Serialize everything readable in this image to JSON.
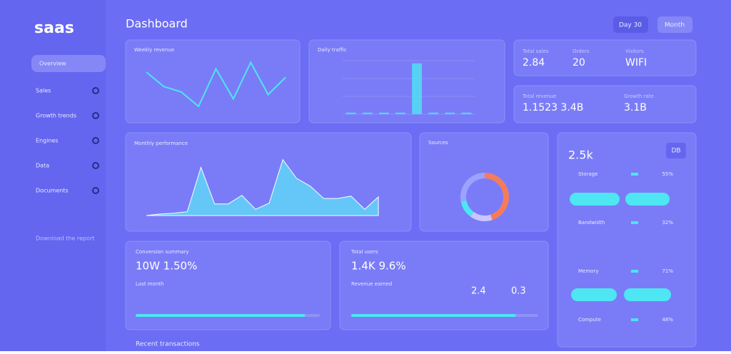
{
  "sidebar": {
    "logo": "saas",
    "items": [
      "Overview",
      "Sales",
      "Growth trends",
      "Engines",
      "Data",
      "Documents"
    ],
    "footer": "Download the report"
  },
  "header": {
    "title": "Dashboard",
    "buttons": [
      "Day 30",
      "Month"
    ]
  },
  "stats": [
    {
      "label": "Total sales",
      "value": "2.84"
    },
    {
      "label": "Orders",
      "value": "20"
    },
    {
      "label": "Visitors",
      "value": "WIFI"
    },
    {
      "label": "Total revenue",
      "value": "1.1523 3.4B"
    },
    {
      "label": "Growth rate",
      "value": "3.1B"
    }
  ],
  "panel": {
    "title": "2.5k",
    "badge": "DB",
    "rows": [
      {
        "label": "Storage",
        "value": "55%"
      },
      {
        "label": "Bandwidth",
        "value": "32%"
      },
      {
        "label": "Memory",
        "value": "71%"
      },
      {
        "label": "Compute",
        "value": "48%"
      }
    ]
  },
  "cards": [
    {
      "label": "Conversion summary",
      "value": "10W 1.50%",
      "sub": "Last month",
      "progress": 92
    },
    {
      "label": "Total users",
      "value": "1.4K 9.6%",
      "sub": "Revenue earned",
      "stats": [
        "2.4",
        "0.3"
      ],
      "progress": 88
    }
  ],
  "footer": "Recent transactions",
  "chart_data": [
    {
      "type": "line",
      "title": "Weekly revenue",
      "color": "#4de6f2",
      "values": [
        72,
        45,
        35,
        8,
        78,
        22,
        90,
        30,
        62
      ],
      "ylim": [
        0,
        100
      ]
    },
    {
      "type": "bar",
      "title": "Daily traffic",
      "color": "#4de6f2",
      "values": [
        3,
        3,
        3,
        3,
        95,
        3,
        3,
        3
      ],
      "ylim": [
        0,
        100
      ]
    },
    {
      "type": "area",
      "title": "Monthly performance",
      "color": "#5ee0f8",
      "values": [
        0,
        2,
        3,
        5,
        62,
        15,
        15,
        26,
        8,
        16,
        72,
        48,
        38,
        22,
        22,
        25,
        8,
        24
      ],
      "ylim": [
        0,
        80
      ]
    },
    {
      "type": "pie",
      "title": "Sources",
      "values": [
        45,
        15,
        12,
        28
      ],
      "colors": [
        "#f47c5c",
        "#c9c6ff",
        "#4de6f2",
        "#9aa3ff"
      ]
    }
  ]
}
